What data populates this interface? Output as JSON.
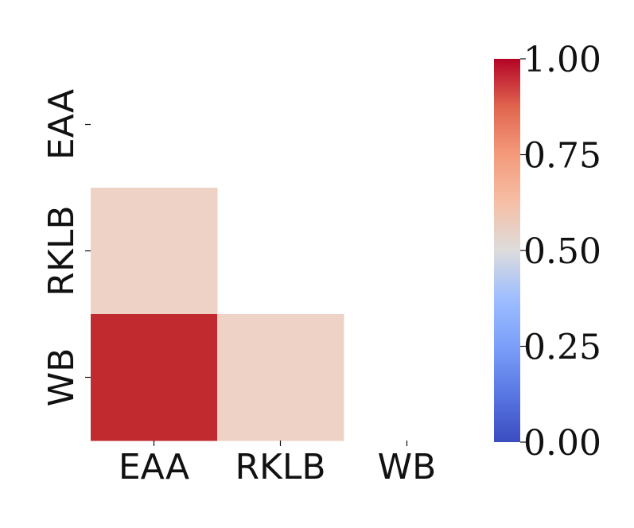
{
  "chart_data": {
    "type": "heatmap",
    "title": "",
    "xlabel": "",
    "ylabel": "",
    "x_categories": [
      "EAA",
      "RKLB",
      "WB"
    ],
    "y_categories": [
      "EAA",
      "RKLB",
      "WB"
    ],
    "mask": "upper-triangle-including-diagonal",
    "cells": [
      {
        "x": "EAA",
        "y": "RKLB",
        "value": 0.6
      },
      {
        "x": "EAA",
        "y": "WB",
        "value": 0.97
      },
      {
        "x": "RKLB",
        "y": "WB",
        "value": 0.6
      }
    ],
    "colormap": "coolwarm",
    "colorbar": {
      "range": [
        0.0,
        1.0
      ],
      "ticks": [
        0.0,
        0.25,
        0.5,
        0.75,
        1.0
      ],
      "tick_labels": [
        "0.00",
        "0.25",
        "0.50",
        "0.75",
        "1.00"
      ]
    },
    "colors": {
      "cell_high": "#c12b30",
      "cell_mid": "#edd2c5"
    }
  }
}
